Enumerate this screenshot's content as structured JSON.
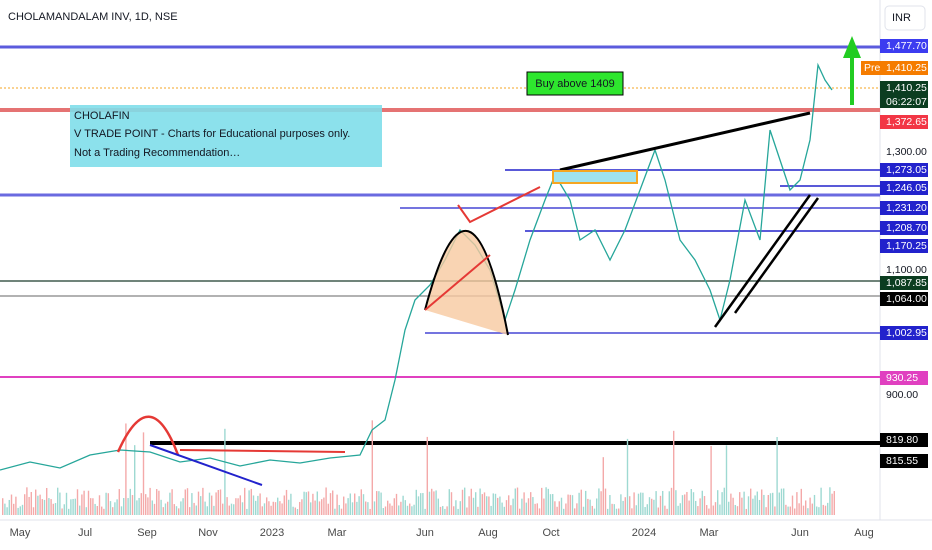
{
  "header": {
    "symbol": "CHOLAMANDALAM INV, 1D, NSE",
    "currency": "INR"
  },
  "annotations": {
    "note": [
      "CHOLAFIN",
      "V TRADE POINT - Charts for Educational purposes only.",
      "Not a Trading Recommendation…"
    ],
    "buy": "Buy above 1409"
  },
  "price_axis": {
    "pre": "Pre",
    "countdown": "06:22:07",
    "labels": [
      "1,477.70",
      "1,410.25",
      "1,410.25",
      "1,372.65",
      "1,300.00",
      "1,273.05",
      "1,246.05",
      "1,231.20",
      "1,208.70",
      "1,170.25",
      "1,100.00",
      "1,087.85",
      "1,064.00",
      "1,002.95",
      "930.25",
      "900.00",
      "819.80",
      "815.55"
    ]
  },
  "time_axis": [
    "May",
    "Jul",
    "Sep",
    "Nov",
    "2023",
    "Mar",
    "Jun",
    "Aug",
    "Oct",
    "2024",
    "Mar",
    "Jun",
    "Aug"
  ]
}
